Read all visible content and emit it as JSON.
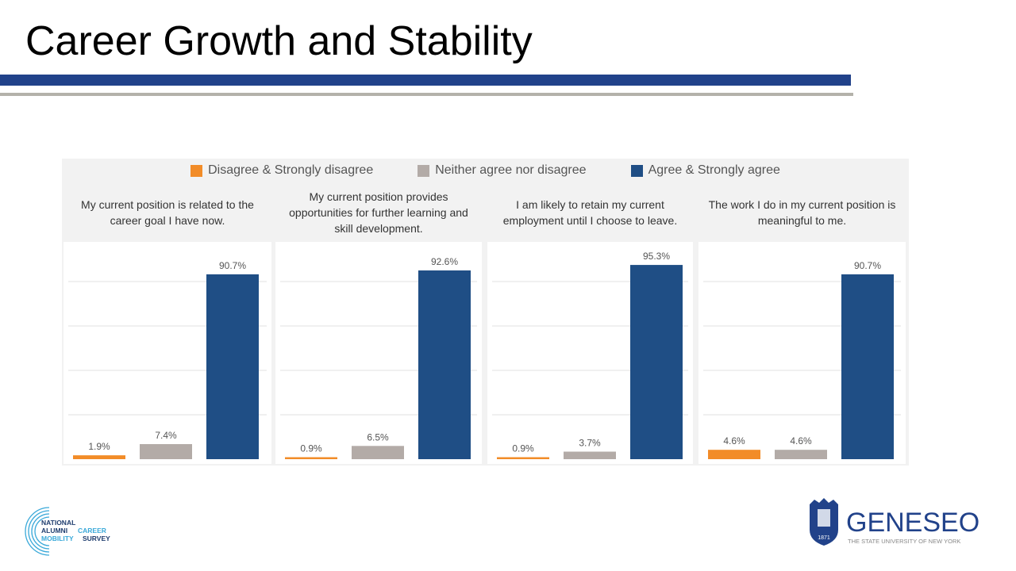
{
  "title": "Career Growth and Stability",
  "chart_data": {
    "type": "bar",
    "legend_position": "top",
    "categories": [
      "Disagree & Strongly disagree",
      "Neither agree nor disagree",
      "Agree & Strongly agree"
    ],
    "colors": [
      "#f28c28",
      "#b3aba7",
      "#1f4e85"
    ],
    "grid": true,
    "panels": [
      {
        "title": "My current position is related to the career goal I have now.",
        "values": [
          1.9,
          7.4,
          90.7
        ],
        "labels": [
          "1.9%",
          "7.4%",
          "90.7%"
        ]
      },
      {
        "title": "My current position provides opportunities for further learning and skill development.",
        "values": [
          0.9,
          6.5,
          92.6
        ],
        "labels": [
          "0.9%",
          "6.5%",
          "92.6%"
        ]
      },
      {
        "title": "I am likely to retain my current employment until I choose to leave.",
        "values": [
          0.9,
          3.7,
          95.3
        ],
        "labels": [
          "0.9%",
          "3.7%",
          "95.3%"
        ]
      },
      {
        "title": "The work I do in my current position is meaningful to me.",
        "values": [
          4.6,
          4.6,
          90.7
        ],
        "labels": [
          "4.6%",
          "4.6%",
          "90.7%"
        ]
      }
    ]
  },
  "logos": {
    "left": [
      "NATIONAL",
      "ALUMNI",
      "CAREER",
      "MOBILITY",
      "SURVEY"
    ],
    "right_name": "GENESEO",
    "right_sub": "THE STATE UNIVERSITY OF NEW YORK",
    "right_year": "1871"
  }
}
